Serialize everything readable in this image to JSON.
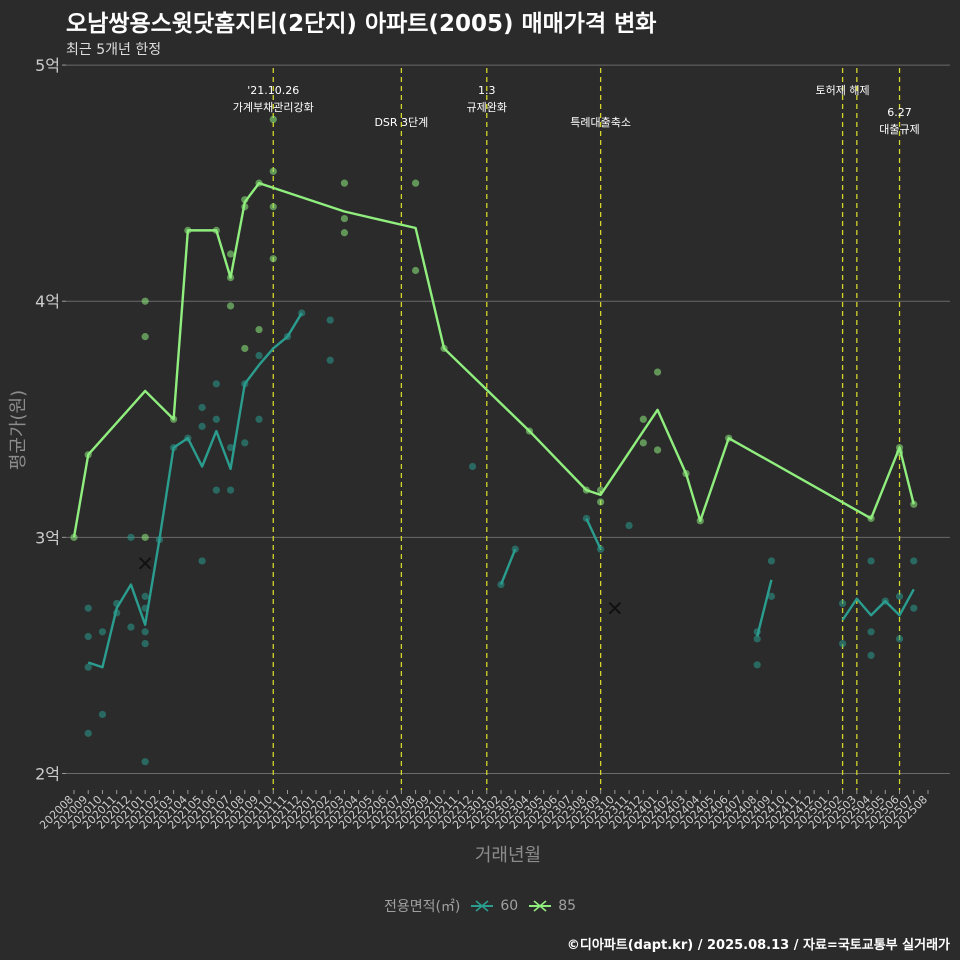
{
  "title": "오남쌍용스윗닷홈지티(2단지) 아파트(2005) 매매가격 변화",
  "subtitle": "최근 5개년 한정",
  "caption": "©디아파트(dapt.kr) / 2025.08.13 / 자료=국토교통부 실거래가",
  "chart_data": {
    "type": "line",
    "xlabel": "거래년월",
    "ylabel": "평균가(원)",
    "categories": [
      "202008",
      "202009",
      "202010",
      "202011",
      "202012",
      "202101",
      "202102",
      "202103",
      "202104",
      "202105",
      "202106",
      "202107",
      "202108",
      "202109",
      "202110",
      "202111",
      "202112",
      "202201",
      "202202",
      "202203",
      "202204",
      "202205",
      "202206",
      "202207",
      "202208",
      "202209",
      "202210",
      "202211",
      "202212",
      "202301",
      "202302",
      "202303",
      "202304",
      "202305",
      "202306",
      "202307",
      "202308",
      "202309",
      "202310",
      "202311",
      "202312",
      "202401",
      "202402",
      "202403",
      "202404",
      "202405",
      "202406",
      "202407",
      "202408",
      "202409",
      "202410",
      "202411",
      "202412",
      "202501",
      "202502",
      "202503",
      "202504",
      "202505",
      "202506",
      "202507",
      "202508"
    ],
    "ylim": [
      1.93,
      5.03
    ],
    "y_ticks": [
      {
        "value": 2,
        "label": "2억"
      },
      {
        "value": 3,
        "label": "3억"
      },
      {
        "value": 4,
        "label": "4억"
      },
      {
        "value": 5,
        "label": "5억"
      }
    ],
    "grid": true,
    "legend": {
      "title": "전용면적(㎡)",
      "position": "bottom"
    },
    "series": [
      {
        "name": "60",
        "color": "#2a9d8f",
        "line_segments": [
          [
            [
              "202009",
              2.47
            ],
            [
              "202010",
              2.45
            ],
            [
              "202011",
              2.7
            ],
            [
              "202012",
              2.8
            ],
            [
              "202101",
              2.63
            ],
            [
              "202102",
              2.99
            ],
            [
              "202103",
              3.38
            ],
            [
              "202104",
              3.42
            ],
            [
              "202105",
              3.3
            ],
            [
              "202106",
              3.45
            ],
            [
              "202107",
              3.29
            ],
            [
              "202108",
              3.65
            ],
            [
              "202109",
              3.73
            ],
            [
              "202110",
              3.8
            ],
            [
              "202111",
              3.85
            ],
            [
              "202112",
              3.95
            ]
          ],
          [
            [
              "202302",
              2.8
            ],
            [
              "202303",
              2.95
            ]
          ],
          [
            [
              "202308",
              3.08
            ],
            [
              "202309",
              2.95
            ]
          ],
          [
            [
              "202408",
              2.58
            ],
            [
              "202409",
              2.82
            ]
          ],
          [
            [
              "202502",
              2.65
            ],
            [
              "202503",
              2.74
            ],
            [
              "202504",
              2.67
            ],
            [
              "202505",
              2.73
            ],
            [
              "202506",
              2.67
            ],
            [
              "202507",
              2.78
            ]
          ]
        ],
        "points": [
          [
            "202009",
            2.7
          ],
          [
            "202009",
            2.58
          ],
          [
            "202009",
            2.45
          ],
          [
            "202009",
            2.17
          ],
          [
            "202010",
            2.6
          ],
          [
            "202010",
            2.25
          ],
          [
            "202011",
            2.72
          ],
          [
            "202011",
            2.68
          ],
          [
            "202012",
            3.0
          ],
          [
            "202012",
            2.62
          ],
          [
            "202101",
            2.75
          ],
          [
            "202101",
            2.7
          ],
          [
            "202101",
            2.6
          ],
          [
            "202101",
            2.55
          ],
          [
            "202101",
            2.05
          ],
          [
            "202102",
            2.99
          ],
          [
            "202103",
            3.38
          ],
          [
            "202104",
            3.42
          ],
          [
            "202105",
            3.55
          ],
          [
            "202105",
            3.47
          ],
          [
            "202105",
            2.9
          ],
          [
            "202106",
            3.65
          ],
          [
            "202106",
            3.5
          ],
          [
            "202106",
            3.2
          ],
          [
            "202107",
            3.38
          ],
          [
            "202107",
            3.2
          ],
          [
            "202108",
            3.65
          ],
          [
            "202108",
            3.4
          ],
          [
            "202109",
            3.77
          ],
          [
            "202109",
            3.5
          ],
          [
            "202111",
            3.85
          ],
          [
            "202112",
            3.95
          ],
          [
            "202202",
            3.92
          ],
          [
            "202202",
            3.75
          ],
          [
            "202212",
            3.3
          ],
          [
            "202302",
            2.8
          ],
          [
            "202303",
            2.95
          ],
          [
            "202308",
            3.08
          ],
          [
            "202309",
            2.95
          ],
          [
            "202311",
            3.05
          ],
          [
            "202408",
            2.6
          ],
          [
            "202408",
            2.57
          ],
          [
            "202408",
            2.46
          ],
          [
            "202409",
            2.9
          ],
          [
            "202409",
            2.75
          ],
          [
            "202502",
            2.72
          ],
          [
            "202502",
            2.55
          ],
          [
            "202504",
            2.9
          ],
          [
            "202504",
            2.6
          ],
          [
            "202504",
            2.5
          ],
          [
            "202505",
            2.73
          ],
          [
            "202506",
            2.75
          ],
          [
            "202506",
            2.57
          ],
          [
            "202507",
            2.9
          ],
          [
            "202507",
            2.7
          ]
        ],
        "cancelled": [
          [
            "202101",
            2.89
          ],
          [
            "202310",
            2.7
          ]
        ]
      },
      {
        "name": "85",
        "color": "#90ee7e",
        "line_segments": [
          [
            [
              "202008",
              3.0
            ],
            [
              "202009",
              3.35
            ],
            [
              "202101",
              3.62
            ],
            [
              "202103",
              3.5
            ],
            [
              "202104",
              4.3
            ],
            [
              "202106",
              4.3
            ],
            [
              "202107",
              4.1
            ],
            [
              "202108",
              4.42
            ],
            [
              "202109",
              4.5
            ],
            [
              "202203",
              4.38
            ],
            [
              "202208",
              4.31
            ],
            [
              "202210",
              3.8
            ],
            [
              "202304",
              3.45
            ],
            [
              "202308",
              3.2
            ],
            [
              "202309",
              3.18
            ],
            [
              "202401",
              3.54
            ],
            [
              "202403",
              3.27
            ],
            [
              "202404",
              3.07
            ],
            [
              "202406",
              3.42
            ],
            [
              "202504",
              3.08
            ],
            [
              "202506",
              3.38
            ],
            [
              "202507",
              3.14
            ]
          ]
        ],
        "points": [
          [
            "202008",
            3.0
          ],
          [
            "202009",
            3.35
          ],
          [
            "202101",
            4.0
          ],
          [
            "202101",
            3.85
          ],
          [
            "202101",
            3.0
          ],
          [
            "202103",
            3.5
          ],
          [
            "202104",
            4.3
          ],
          [
            "202106",
            4.3
          ],
          [
            "202107",
            4.2
          ],
          [
            "202107",
            4.1
          ],
          [
            "202107",
            3.98
          ],
          [
            "202108",
            4.43
          ],
          [
            "202108",
            4.4
          ],
          [
            "202108",
            3.8
          ],
          [
            "202109",
            4.5
          ],
          [
            "202109",
            3.88
          ],
          [
            "202110",
            4.77
          ],
          [
            "202110",
            4.55
          ],
          [
            "202110",
            4.4
          ],
          [
            "202110",
            4.18
          ],
          [
            "202203",
            4.5
          ],
          [
            "202203",
            4.35
          ],
          [
            "202203",
            4.29
          ],
          [
            "202208",
            4.5
          ],
          [
            "202208",
            4.13
          ],
          [
            "202210",
            3.8
          ],
          [
            "202304",
            3.45
          ],
          [
            "202308",
            3.2
          ],
          [
            "202309",
            3.2
          ],
          [
            "202309",
            3.15
          ],
          [
            "202312",
            3.5
          ],
          [
            "202312",
            3.4
          ],
          [
            "202401",
            3.7
          ],
          [
            "202401",
            3.37
          ],
          [
            "202403",
            3.27
          ],
          [
            "202404",
            3.07
          ],
          [
            "202406",
            3.42
          ],
          [
            "202504",
            3.08
          ],
          [
            "202506",
            3.38
          ],
          [
            "202506",
            3.36
          ],
          [
            "202507",
            3.14
          ]
        ],
        "cancelled": []
      }
    ],
    "annotations": [
      {
        "x": "202110",
        "lines": [
          "'21.10.26",
          "가계부채관리강화"
        ],
        "level": "high"
      },
      {
        "x": "202207",
        "lines": [
          "DSR 3단계"
        ],
        "level": "low"
      },
      {
        "x": "202301",
        "lines": [
          "1.3",
          "규제완화"
        ],
        "level": "high"
      },
      {
        "x": "202309",
        "lines": [
          "특례대출축소"
        ],
        "level": "low"
      },
      {
        "x": "202502",
        "lines": [
          "토허제 해제"
        ],
        "level": "high"
      },
      {
        "x": "202503",
        "lines": [],
        "level": "none"
      },
      {
        "x": "202506",
        "lines": [
          "6.27",
          "대출규제"
        ],
        "level": "mid"
      }
    ]
  }
}
